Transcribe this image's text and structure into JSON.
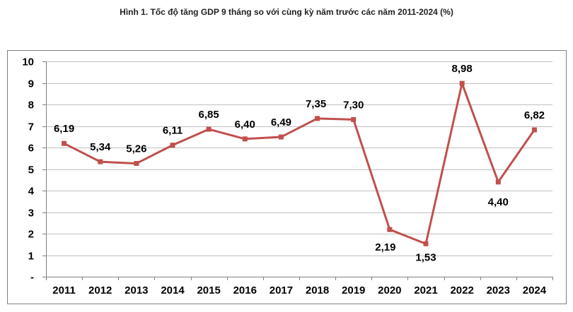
{
  "chart_data": {
    "type": "line",
    "title": "Hình 1. Tốc độ tăng GDP 9 tháng so với cùng kỳ năm trước các năm 2011-2024 (%)",
    "categories": [
      "2011",
      "2012",
      "2013",
      "2014",
      "2015",
      "2016",
      "2017",
      "2018",
      "2019",
      "2020",
      "2021",
      "2022",
      "2023",
      "2024"
    ],
    "series": [
      {
        "name": "Tốc độ tăng GDP 9 tháng (%)",
        "values": [
          6.19,
          5.34,
          5.26,
          6.11,
          6.85,
          6.4,
          6.49,
          7.35,
          7.3,
          2.19,
          1.53,
          8.98,
          4.4,
          6.82
        ],
        "labels": [
          "6,19",
          "5,34",
          "5,26",
          "6,11",
          "6,85",
          "6,40",
          "6,49",
          "7,35",
          "7,30",
          "2,19",
          "1,53",
          "8,98",
          "4,40",
          "6,82"
        ],
        "color": "#c0504d"
      }
    ],
    "y_ticks": [
      "-",
      "1",
      "2",
      "3",
      "4",
      "5",
      "6",
      "7",
      "8",
      "9",
      "10"
    ],
    "ylim": [
      0,
      10
    ],
    "xlabel": "",
    "ylabel": "",
    "grid": true,
    "legend": "none"
  }
}
